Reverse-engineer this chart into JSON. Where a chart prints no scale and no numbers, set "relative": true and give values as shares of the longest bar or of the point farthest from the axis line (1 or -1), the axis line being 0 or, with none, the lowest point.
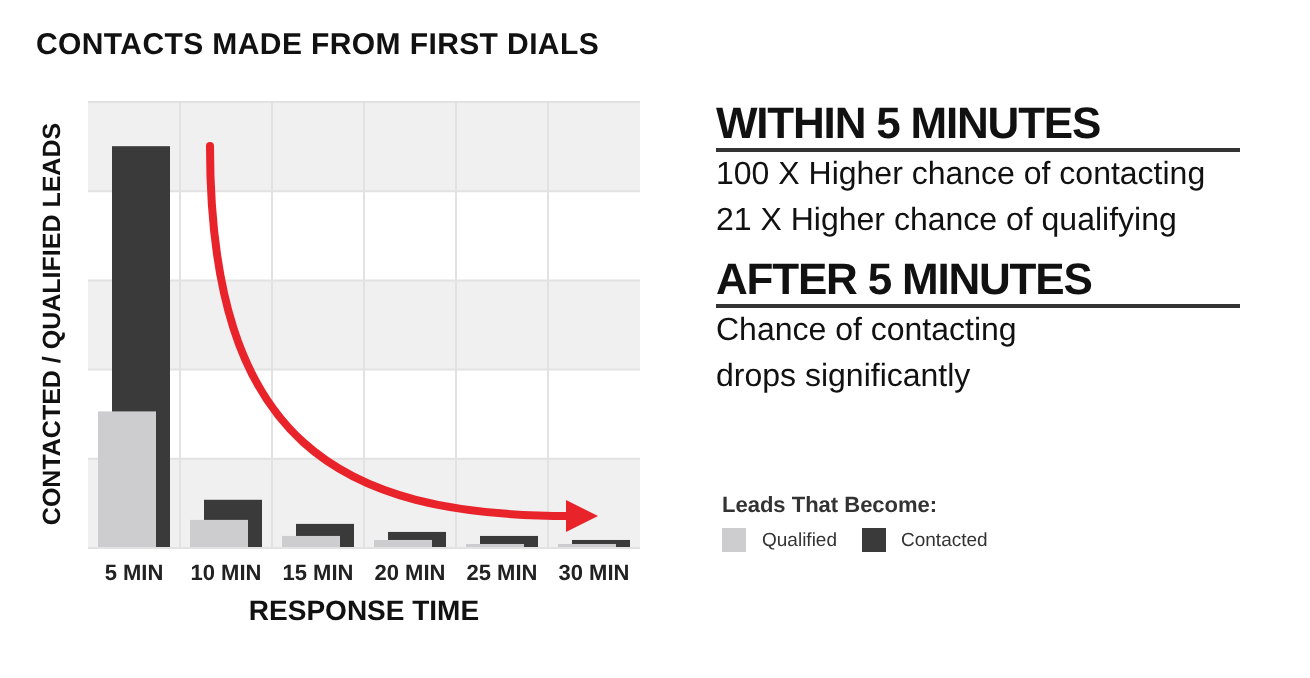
{
  "chart_data": {
    "type": "bar",
    "title": "CONTACTS MADE FROM FIRST DIALS",
    "categories": [
      "5 MIN",
      "10 MIN",
      "15 MIN",
      "20 MIN",
      "25 MIN",
      "30 MIN"
    ],
    "xlabel": "RESPONSE TIME",
    "ylabel": "CONTACTED / QUALIFIED LEADS",
    "relative": true,
    "series": [
      {
        "name": "Qualified",
        "color": "#cdcdcf",
        "values": [
          0.34,
          0.07,
          0.03,
          0.02,
          0.01,
          0.01
        ]
      },
      {
        "name": "Contacted",
        "color": "#3a3a3a",
        "values": [
          1,
          0.12,
          0.06,
          0.04,
          0.03,
          0.02
        ]
      }
    ],
    "legend_title": "Leads That Become:",
    "legend": "right",
    "grid": true,
    "annotations": [
      "WITHIN 5 MINUTES",
      "100 X Higher chance of contacting",
      "21 X Higher chance of qualifying",
      "AFTER 5 MINUTES",
      "Chance of contacting drops significantly"
    ]
  }
}
